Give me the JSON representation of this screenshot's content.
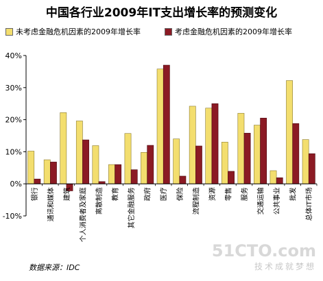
{
  "chart_data": {
    "type": "bar",
    "title": "中国各行业2009年IT支出增长率的预测变化",
    "categories": [
      "银行",
      "通讯和媒体",
      "建筑",
      "个人消费者及家庭",
      "离散制造",
      "教育",
      "其它金融服务",
      "政府",
      "医疗",
      "保险",
      "流程制造",
      "资源",
      "零售",
      "服务",
      "交通运输",
      "公共事业",
      "批发",
      "总体IT市场"
    ],
    "series": [
      {
        "name": "未考虑金融危机因素的2009年增长率",
        "color": "#f3de6e",
        "values": [
          10.2,
          7.5,
          22.2,
          19.6,
          11.9,
          6.0,
          15.7,
          9.8,
          35.8,
          14.0,
          24.2,
          23.6,
          13.0,
          22.0,
          18.3,
          4.1,
          32.2,
          13.8
        ]
      },
      {
        "name": "考虑金融危机因素的2009年增长率",
        "color": "#8b1a24",
        "values": [
          1.5,
          6.8,
          -2.2,
          13.7,
          0.7,
          6.0,
          4.4,
          12.0,
          37.0,
          2.4,
          11.8,
          25.0,
          3.9,
          15.8,
          20.5,
          1.9,
          18.8,
          9.4
        ]
      }
    ],
    "ylim": [
      -10,
      40
    ],
    "yticks": [
      -10,
      0,
      10,
      20,
      30,
      40
    ],
    "ytick_labels": [
      "-10%",
      "0%",
      "10%",
      "20%",
      "30%",
      "40%"
    ],
    "legend_position": "top",
    "grid": false
  },
  "source_text": "数据来源：IDC",
  "watermark": {
    "logo": "51CTO.com",
    "slogan": "技术成就梦想"
  }
}
